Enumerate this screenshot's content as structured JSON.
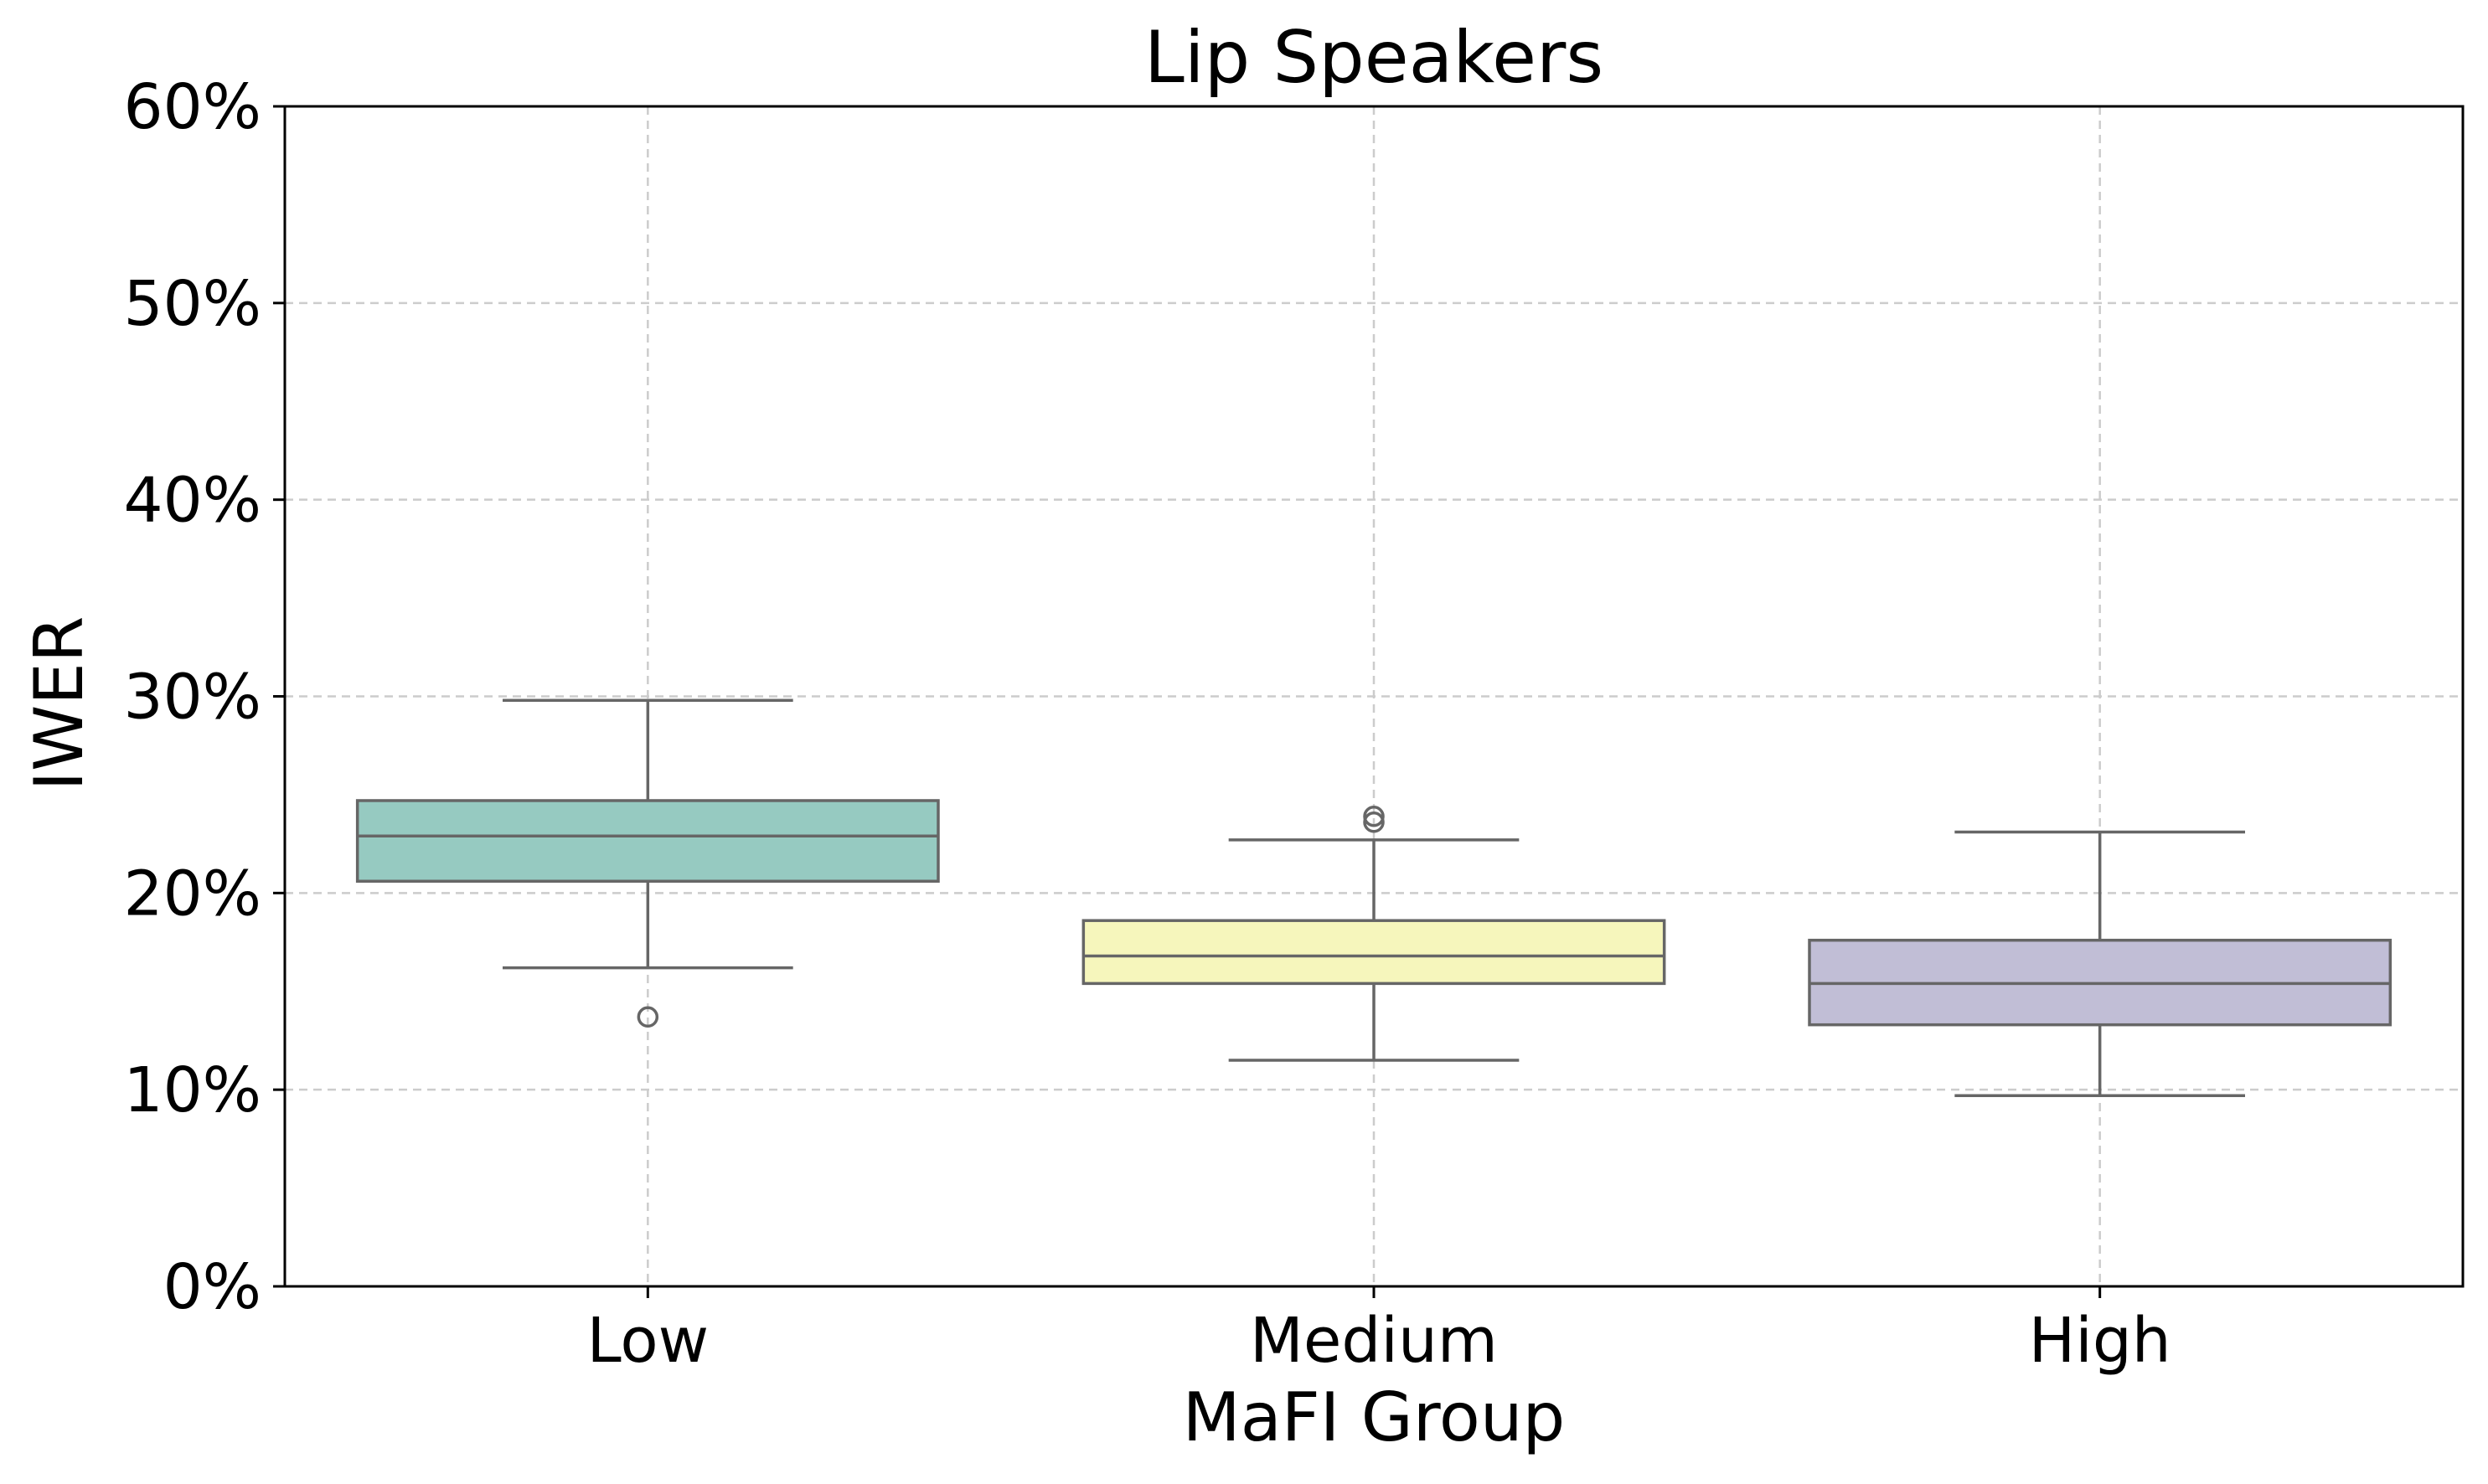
{
  "chart_data": {
    "type": "box",
    "title": "Lip Speakers",
    "xlabel": "MaFI Group",
    "ylabel": "IWER",
    "ylim": [
      0,
      60
    ],
    "y_ticks": [
      0,
      10,
      20,
      30,
      40,
      50,
      60
    ],
    "y_tick_format": "percent",
    "grid": true,
    "categories": [
      "Low",
      "Medium",
      "High"
    ],
    "boxes": [
      {
        "category": "Low",
        "color": "#96cac1",
        "whisker_low": 16.2,
        "q1": 20.6,
        "median": 22.9,
        "q3": 24.7,
        "whisker_high": 29.8,
        "outliers": [
          13.7
        ]
      },
      {
        "category": "Medium",
        "color": "#f6f6bc",
        "whisker_low": 11.5,
        "q1": 15.4,
        "median": 16.8,
        "q3": 18.6,
        "whisker_high": 22.7,
        "outliers": [
          23.6,
          23.9
        ]
      },
      {
        "category": "High",
        "color": "#c1bed6",
        "whisker_low": 9.7,
        "q1": 13.3,
        "median": 15.4,
        "q3": 17.6,
        "whisker_high": 23.1,
        "outliers": []
      }
    ]
  }
}
